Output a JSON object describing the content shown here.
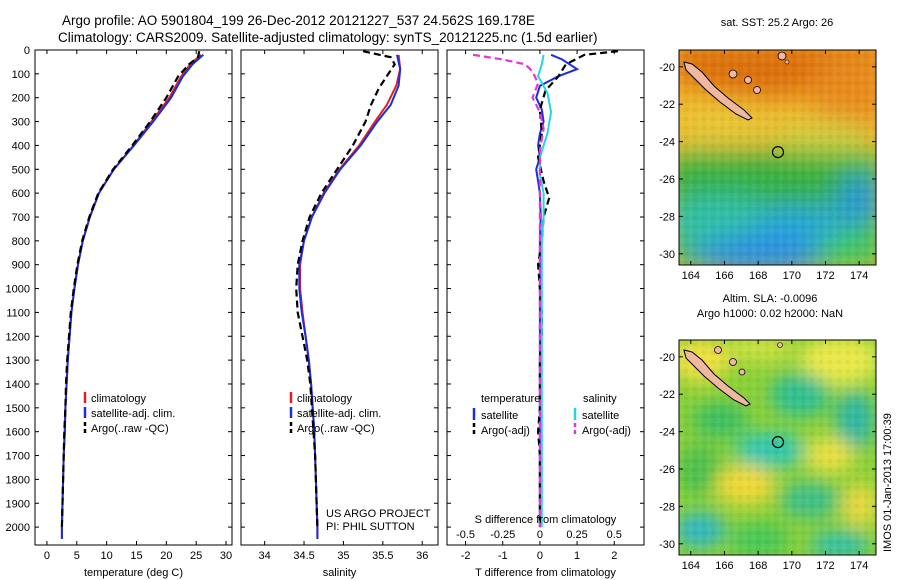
{
  "header": {
    "title_line1": "Argo profile: AO 5901804_199 26-Dec-2012 20121227_537 24.562S 169.178E",
    "title_line2": "Climatology: CARS2009. Satellite-adjusted climatology: synTS_20121225.nc (1.5d earlier)"
  },
  "footer": {
    "imos_stamp": "IMOS 01-Jan-2013 17:00:39"
  },
  "colors": {
    "climatology": "#e02020",
    "satellite": "#1a2ee0",
    "argo": "#000000",
    "s_satellite": "#22d8e0",
    "s_argo": "#e038d8"
  },
  "chart_data": [
    {
      "type": "line",
      "xlabel": "temperature (deg C)",
      "ylabel": "",
      "xlim": [
        -2,
        31
      ],
      "ylim": [
        0,
        2075
      ],
      "y_inverted": true,
      "xticks": [
        0,
        5,
        10,
        15,
        20,
        25,
        30
      ],
      "yticks": [
        0,
        100,
        200,
        300,
        400,
        500,
        600,
        700,
        800,
        900,
        1000,
        1100,
        1200,
        1300,
        1400,
        1500,
        1600,
        1700,
        1800,
        1900,
        2000
      ],
      "legend_position": "lower-middle",
      "series": [
        {
          "name": "climatology",
          "style": "solid",
          "color_key": "climatology",
          "points": [
            [
              25.8,
              20
            ],
            [
              24,
              60
            ],
            [
              22.5,
              110
            ],
            [
              20.5,
              200
            ],
            [
              17.5,
              300
            ],
            [
              14.5,
              400
            ],
            [
              11.2,
              500
            ],
            [
              8.7,
              600
            ],
            [
              7.2,
              700
            ],
            [
              6,
              800
            ],
            [
              5.2,
              900
            ],
            [
              4.6,
              1000
            ],
            [
              4.1,
              1100
            ],
            [
              3.8,
              1200
            ],
            [
              3.5,
              1300
            ],
            [
              3.3,
              1400
            ],
            [
              3.1,
              1500
            ],
            [
              3,
              1600
            ],
            [
              2.8,
              1700
            ],
            [
              2.7,
              1800
            ],
            [
              2.6,
              1900
            ],
            [
              2.5,
              2000
            ],
            [
              2.5,
              2050
            ]
          ]
        },
        {
          "name": "satellite-adj. clim.",
          "style": "solid",
          "color_key": "satellite",
          "points": [
            [
              26.2,
              20
            ],
            [
              24.4,
              60
            ],
            [
              22.8,
              110
            ],
            [
              20.8,
              200
            ],
            [
              17.8,
              300
            ],
            [
              14.6,
              400
            ],
            [
              11.2,
              500
            ],
            [
              8.7,
              600
            ],
            [
              7.2,
              700
            ],
            [
              6,
              800
            ],
            [
              5.2,
              900
            ],
            [
              4.6,
              1000
            ],
            [
              4.1,
              1100
            ],
            [
              3.8,
              1200
            ],
            [
              3.5,
              1300
            ],
            [
              3.3,
              1400
            ],
            [
              3.1,
              1500
            ],
            [
              3,
              1600
            ],
            [
              2.8,
              1700
            ],
            [
              2.7,
              1800
            ],
            [
              2.6,
              1900
            ],
            [
              2.5,
              2000
            ],
            [
              2.5,
              2050
            ]
          ]
        },
        {
          "name": "Argo(..raw -QC)",
          "style": "dashed",
          "color_key": "argo",
          "points": [
            [
              25.5,
              5
            ],
            [
              25.3,
              30
            ],
            [
              23.8,
              60
            ],
            [
              22,
              110
            ],
            [
              20,
              200
            ],
            [
              17.3,
              300
            ],
            [
              14.3,
              400
            ],
            [
              11.1,
              500
            ],
            [
              8.6,
              600
            ],
            [
              7.1,
              700
            ],
            [
              5.9,
              800
            ],
            [
              5.1,
              900
            ],
            [
              4.5,
              1000
            ],
            [
              4,
              1100
            ],
            [
              3.7,
              1200
            ],
            [
              3.4,
              1300
            ],
            [
              3.2,
              1400
            ],
            [
              3.1,
              1500
            ],
            [
              2.9,
              1600
            ],
            [
              2.8,
              1700
            ],
            [
              2.7,
              1800
            ],
            [
              2.6,
              1900
            ],
            [
              2.5,
              2000
            ]
          ]
        }
      ]
    },
    {
      "type": "line",
      "xlabel": "salinity",
      "xlim": [
        33.7,
        36.2
      ],
      "ylim": [
        0,
        2075
      ],
      "y_inverted": true,
      "xticks": [
        34,
        34.5,
        35,
        35.5,
        36
      ],
      "legend_position": "lower-middle",
      "annotation_line1": "US ARGO PROJECT",
      "annotation_line2": "PI: PHIL SUTTON",
      "series": [
        {
          "name": "climatology",
          "style": "solid",
          "color_key": "climatology",
          "points": [
            [
              35.7,
              20
            ],
            [
              35.72,
              80
            ],
            [
              35.67,
              150
            ],
            [
              35.55,
              230
            ],
            [
              35.4,
              300
            ],
            [
              35.2,
              400
            ],
            [
              34.95,
              500
            ],
            [
              34.75,
              600
            ],
            [
              34.6,
              700
            ],
            [
              34.5,
              800
            ],
            [
              34.45,
              900
            ],
            [
              34.45,
              1000
            ],
            [
              34.48,
              1100
            ],
            [
              34.52,
              1200
            ],
            [
              34.56,
              1300
            ],
            [
              34.59,
              1400
            ],
            [
              34.61,
              1500
            ],
            [
              34.63,
              1600
            ],
            [
              34.64,
              1700
            ],
            [
              34.65,
              1800
            ],
            [
              34.66,
              1900
            ],
            [
              34.67,
              2000
            ],
            [
              34.67,
              2050
            ]
          ]
        },
        {
          "name": "satellite-adj. clim.",
          "style": "solid",
          "color_key": "satellite",
          "points": [
            [
              35.68,
              20
            ],
            [
              35.72,
              80
            ],
            [
              35.7,
              150
            ],
            [
              35.6,
              230
            ],
            [
              35.43,
              300
            ],
            [
              35.22,
              400
            ],
            [
              34.96,
              500
            ],
            [
              34.76,
              600
            ],
            [
              34.6,
              700
            ],
            [
              34.5,
              800
            ],
            [
              34.44,
              900
            ],
            [
              34.44,
              1000
            ],
            [
              34.47,
              1100
            ],
            [
              34.52,
              1200
            ],
            [
              34.56,
              1300
            ],
            [
              34.59,
              1400
            ],
            [
              34.61,
              1500
            ],
            [
              34.63,
              1600
            ],
            [
              34.64,
              1700
            ],
            [
              34.65,
              1800
            ],
            [
              34.66,
              1900
            ],
            [
              34.67,
              2000
            ],
            [
              34.67,
              2050
            ]
          ]
        },
        {
          "name": "Argo(..raw -QC)",
          "style": "dashed",
          "color_key": "argo",
          "points": [
            [
              35.25,
              5
            ],
            [
              35.6,
              30
            ],
            [
              35.65,
              60
            ],
            [
              35.55,
              110
            ],
            [
              35.45,
              160
            ],
            [
              35.35,
              230
            ],
            [
              35.28,
              300
            ],
            [
              35.12,
              400
            ],
            [
              34.92,
              500
            ],
            [
              34.72,
              600
            ],
            [
              34.57,
              700
            ],
            [
              34.48,
              800
            ],
            [
              34.42,
              900
            ],
            [
              34.4,
              1000
            ],
            [
              34.42,
              1100
            ],
            [
              34.48,
              1200
            ],
            [
              34.54,
              1300
            ],
            [
              34.58,
              1400
            ],
            [
              34.6,
              1500
            ],
            [
              34.62,
              1600
            ],
            [
              34.64,
              1700
            ],
            [
              34.65,
              1800
            ],
            [
              34.66,
              1900
            ],
            [
              34.67,
              2000
            ]
          ]
        }
      ]
    },
    {
      "type": "line",
      "xlabel": "T difference from climatology",
      "xlabel_top": "S difference from climatology",
      "xlim": [
        -2.5,
        2.8
      ],
      "ylim": [
        0,
        2075
      ],
      "y_inverted": true,
      "xticks": [
        -2,
        -1,
        0,
        1,
        2
      ],
      "xticks_s": [
        {
          "label": "-0.5",
          "at": -2
        },
        {
          "label": "-0.25",
          "at": -1
        },
        {
          "label": "0",
          "at": 0
        },
        {
          "label": "0.25",
          "at": 1
        },
        {
          "label": "0.5",
          "at": 2
        }
      ],
      "legend_heading_left": "temperature",
      "legend_heading_right": "salinity",
      "series": [
        {
          "name": "satellite",
          "group": "temperature",
          "style": "solid",
          "color_key": "satellite",
          "points": [
            [
              0.3,
              20
            ],
            [
              0.6,
              40
            ],
            [
              1.0,
              80
            ],
            [
              0.5,
              110
            ],
            [
              0,
              150
            ],
            [
              -0.1,
              200
            ],
            [
              0.05,
              250
            ],
            [
              0.1,
              300
            ],
            [
              0,
              350
            ],
            [
              -0.05,
              400
            ],
            [
              0,
              450
            ],
            [
              -0.1,
              500
            ],
            [
              -0.05,
              550
            ],
            [
              0,
              600
            ],
            [
              0.02,
              700
            ],
            [
              0,
              800
            ],
            [
              0,
              1000
            ],
            [
              0,
              1500
            ],
            [
              0,
              2000
            ]
          ]
        },
        {
          "name": "Argo(-adj)",
          "group": "temperature",
          "style": "dashed",
          "color_key": "argo",
          "points": [
            [
              2.1,
              5
            ],
            [
              1.2,
              20
            ],
            [
              0.7,
              60
            ],
            [
              0.5,
              110
            ],
            [
              0.15,
              170
            ],
            [
              0,
              250
            ],
            [
              0.05,
              350
            ],
            [
              -0.05,
              450
            ],
            [
              0.1,
              550
            ],
            [
              0.25,
              620
            ],
            [
              0.1,
              700
            ],
            [
              0.05,
              800
            ],
            [
              -0.05,
              900
            ],
            [
              0,
              1000
            ],
            [
              0.05,
              1100
            ],
            [
              0.05,
              1200
            ],
            [
              0,
              1300
            ],
            [
              0,
              1400
            ],
            [
              0,
              1500
            ],
            [
              -0.05,
              1600
            ],
            [
              0,
              1700
            ],
            [
              0,
              1900
            ],
            [
              0,
              2000
            ]
          ]
        },
        {
          "name": "satellite",
          "group": "salinity",
          "style": "solid",
          "color_key": "s_satellite",
          "points": [
            [
              0.1,
              20
            ],
            [
              0.05,
              60
            ],
            [
              -0.05,
              110
            ],
            [
              0.2,
              180
            ],
            [
              0.3,
              260
            ],
            [
              0.2,
              350
            ],
            [
              0,
              450
            ],
            [
              0,
              520
            ],
            [
              0.1,
              600
            ],
            [
              0.1,
              700
            ],
            [
              0.05,
              800
            ],
            [
              0.05,
              900
            ],
            [
              0.05,
              1000
            ],
            [
              0.05,
              1200
            ],
            [
              0.05,
              1500
            ],
            [
              0.05,
              2000
            ]
          ]
        },
        {
          "name": "Argo(-adj)",
          "group": "salinity",
          "style": "dashed",
          "color_key": "s_argo",
          "points": [
            [
              -1.8,
              20
            ],
            [
              -1,
              40
            ],
            [
              -0.4,
              60
            ],
            [
              -0.2,
              90
            ],
            [
              -0.05,
              140
            ],
            [
              -0.2,
              200
            ],
            [
              0,
              260
            ],
            [
              0.1,
              330
            ],
            [
              0,
              420
            ],
            [
              0,
              600
            ],
            [
              0,
              800
            ],
            [
              0,
              1000
            ],
            [
              0,
              1500
            ],
            [
              0,
              2000
            ]
          ]
        }
      ]
    },
    {
      "type": "heatmap",
      "title": "sat. SST: 25.2  Argo: 26",
      "xlim": [
        163.3,
        175
      ],
      "ylim": [
        -30.6,
        -19.1
      ],
      "xticks": [
        164,
        166,
        168,
        170,
        172,
        174
      ],
      "yticks": [
        -20,
        -22,
        -24,
        -26,
        -28,
        -30
      ],
      "profile_marker": [
        169.178,
        -24.562
      ]
    },
    {
      "type": "heatmap",
      "title_line1": "Altim. SLA: -0.0096",
      "title_line2": "Argo h1000: 0.02 h2000: NaN",
      "xlim": [
        163.3,
        175
      ],
      "ylim": [
        -30.6,
        -19.1
      ],
      "xticks": [
        164,
        166,
        168,
        170,
        172,
        174
      ],
      "yticks": [
        -20,
        -22,
        -24,
        -26,
        -28,
        -30
      ],
      "profile_marker": [
        169.178,
        -24.562
      ]
    }
  ]
}
